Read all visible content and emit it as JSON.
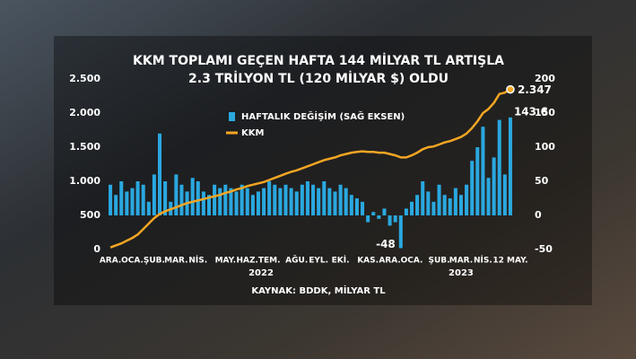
{
  "chart_data": {
    "type": "bar_line",
    "title": [
      "KKM TOPLAMI GEÇEN HAFTA 144 MİLYAR TL ARTIŞLA",
      "2.3 TRİLYON TL (120 MİLYAR $) OLDU"
    ],
    "source": "KAYNAK: BDDK, MİLYAR TL",
    "categories": [
      "ARA.",
      null,
      null,
      null,
      "OCA.",
      null,
      null,
      null,
      "ŞUB.",
      null,
      null,
      null,
      "MAR.",
      null,
      null,
      null,
      "NİS.",
      null,
      null,
      null,
      null,
      "MAY.",
      null,
      null,
      null,
      "HAZ.",
      null,
      null,
      null,
      "TEM.",
      null,
      null,
      null,
      null,
      "AĞU.",
      null,
      null,
      null,
      "EYL.",
      null,
      null,
      null,
      "EKİ.",
      null,
      null,
      null,
      null,
      "KAS.",
      null,
      null,
      null,
      "ARA.",
      null,
      null,
      null,
      "OCA.",
      null,
      null,
      null,
      null,
      "ŞUB.",
      null,
      null,
      null,
      "MAR.",
      null,
      null,
      null,
      "NİS.",
      null,
      null,
      null,
      null,
      "12 MAY."
    ],
    "x_groups": [
      {
        "label": "2022",
        "from": 4,
        "to": 51
      },
      {
        "label": "2023",
        "from": 55,
        "to": 73
      }
    ],
    "series": [
      {
        "name": "HAFTALIK DEĞİŞİM (SAĞ EKSEN)",
        "type": "bar",
        "axis": "y2",
        "color": "#2aa8e0",
        "values": [
          45,
          30,
          50,
          35,
          40,
          50,
          45,
          20,
          60,
          120,
          50,
          20,
          60,
          45,
          35,
          55,
          50,
          35,
          30,
          45,
          40,
          45,
          40,
          35,
          45,
          40,
          30,
          35,
          40,
          50,
          45,
          40,
          45,
          40,
          35,
          45,
          50,
          45,
          40,
          50,
          40,
          35,
          45,
          40,
          30,
          25,
          20,
          -10,
          5,
          -5,
          10,
          -15,
          -10,
          -48,
          10,
          20,
          30,
          50,
          35,
          20,
          45,
          30,
          25,
          40,
          30,
          45,
          80,
          100,
          130,
          55,
          85,
          140,
          60,
          143.6
        ],
        "labeled": [
          53,
          73
        ]
      },
      {
        "name": "KKM",
        "type": "line",
        "axis": "y",
        "color": "#f5a623",
        "values": [
          30,
          60,
          90,
          130,
          170,
          220,
          300,
          380,
          460,
          520,
          560,
          590,
          620,
          650,
          680,
          700,
          720,
          740,
          760,
          780,
          800,
          830,
          850,
          880,
          900,
          930,
          950,
          970,
          990,
          1020,
          1050,
          1080,
          1110,
          1140,
          1160,
          1190,
          1220,
          1250,
          1280,
          1310,
          1330,
          1350,
          1380,
          1400,
          1420,
          1430,
          1440,
          1430,
          1430,
          1420,
          1420,
          1400,
          1380,
          1350,
          1350,
          1380,
          1420,
          1470,
          1500,
          1510,
          1540,
          1570,
          1590,
          1620,
          1650,
          1700,
          1780,
          1880,
          2000,
          2060,
          2150,
          2280,
          2300,
          2347
        ],
        "value_labels": [
          null,
          null,
          null,
          null,
          null,
          null,
          null,
          null,
          null,
          null,
          null,
          null,
          null,
          null,
          null,
          null,
          null,
          null,
          null,
          null,
          null,
          null,
          null,
          null,
          null,
          null,
          null,
          null,
          null,
          null,
          null,
          null,
          null,
          null,
          null,
          null,
          null,
          null,
          null,
          null,
          null,
          null,
          null,
          null,
          null,
          null,
          null,
          null,
          null,
          null,
          null,
          null,
          null,
          null,
          null,
          null,
          null,
          null,
          null,
          null,
          null,
          null,
          null,
          null,
          null,
          null,
          null,
          null,
          null,
          null,
          null,
          null,
          null,
          "2.347"
        ]
      }
    ],
    "ylim": [
      0,
      2500
    ],
    "yticks": [
      0,
      500,
      {
        "value": 1000,
        "label": "1.000"
      },
      {
        "value": 1500,
        "label": "1.500"
      },
      {
        "value": 2000,
        "label": "2.000"
      },
      {
        "value": 2500,
        "label": "2.500"
      }
    ],
    "y2lim": [
      -50,
      200
    ],
    "y2ticks": [
      -50,
      0,
      50,
      100,
      150,
      200
    ],
    "legend": "top-left"
  }
}
